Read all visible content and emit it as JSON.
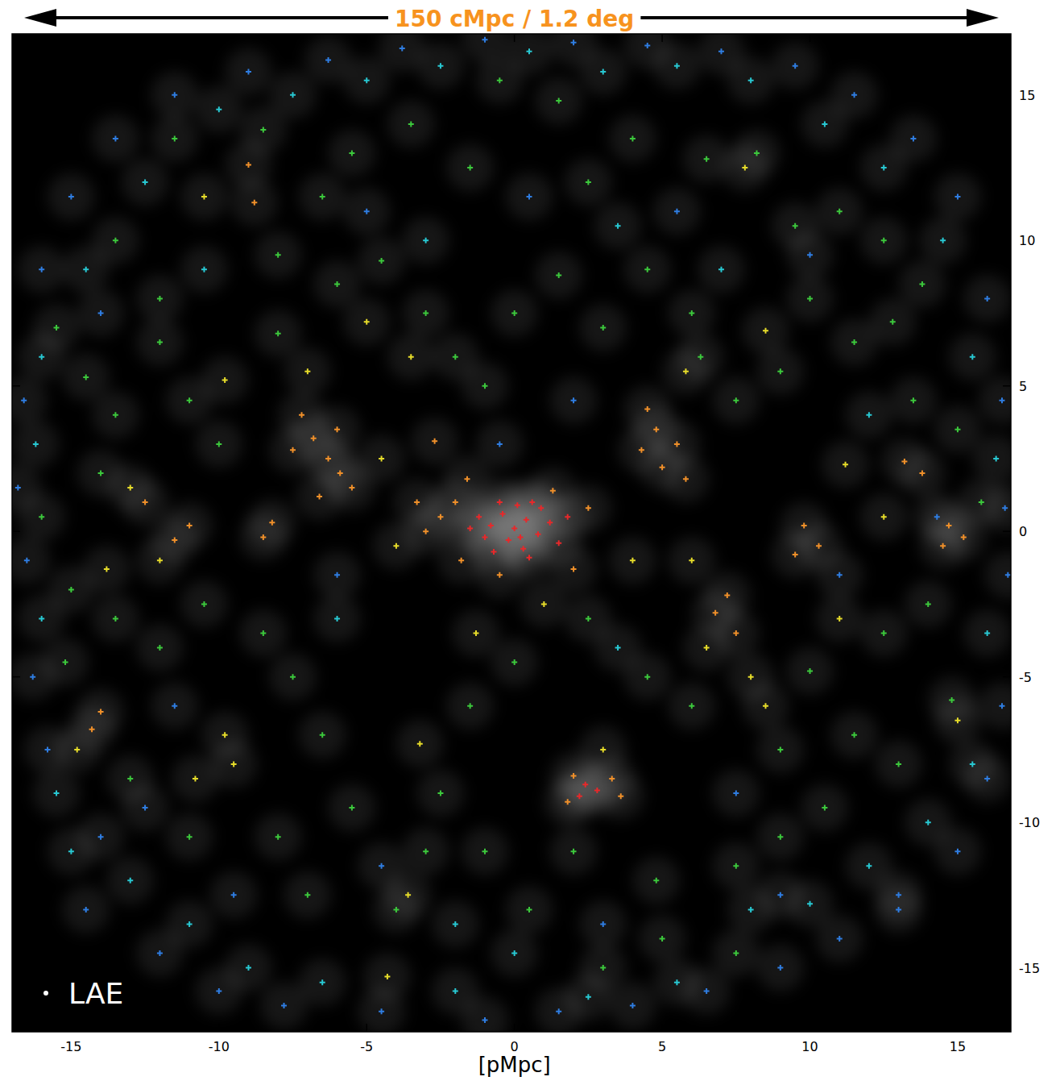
{
  "chart_data": {
    "type": "scatter",
    "title": "150 cMpc / 1.2 deg",
    "x_label": "[pMpc]",
    "xlim": [
      -17,
      16.8
    ],
    "ylim": [
      -17.2,
      17.1
    ],
    "xticks": [
      -15,
      -10,
      -5,
      0,
      5,
      10,
      15
    ],
    "yticks": [
      -15,
      -10,
      -5,
      0,
      5,
      10,
      15
    ],
    "legend": "bottom-left",
    "series": [
      {
        "name": "LAE",
        "color": "#ffffff",
        "marker": "plus",
        "x": [
          -1.2,
          -0.8,
          -0.4,
          0,
          0.4,
          0.8,
          1.2,
          -0.2,
          0.3,
          0.9,
          -1,
          0.6,
          -0.5,
          1.5,
          0.1,
          -0.7,
          0.5,
          1.8,
          -1.5,
          0.2,
          2.4,
          2.8,
          2.2,
          -2.5,
          -3,
          -2,
          -3.3,
          -1.8,
          2,
          2.5,
          -0.5,
          1.3,
          -1.6,
          -6.3,
          -6.8,
          -5.9,
          -7.2,
          -6,
          -5.5,
          -6.6,
          -7.5,
          4.8,
          5.5,
          5,
          4.5,
          5.8,
          4.3,
          9.8,
          10.3,
          9.5,
          13.2,
          13.8,
          14.7,
          15.2,
          14.5,
          -8.5,
          -8.2,
          -11,
          -11.5,
          -12.5,
          -9,
          -8.8,
          7.2,
          6.8,
          7.5,
          2,
          3.3,
          1.8,
          3.6,
          -14.3,
          -14,
          -2.7,
          -9.8,
          -7,
          -4.5,
          -3.5,
          -5,
          -10.5,
          8,
          8.5,
          6.5,
          11.2,
          12.5,
          -13,
          -12,
          -9.5,
          -9.8,
          -10.8,
          -14.8,
          -3.2,
          -3.6,
          -4.3,
          6,
          3,
          7.8,
          8.5,
          5.8,
          11,
          15,
          -1.3,
          1,
          -4,
          4,
          -13.8,
          -14.5,
          -13.5,
          -12,
          -11,
          -10,
          -8,
          -6,
          -4.5,
          -3,
          -2,
          -1,
          0,
          1.5,
          3,
          4.5,
          6,
          6.3,
          7.5,
          9,
          10,
          11.5,
          12.8,
          13.5,
          15,
          15.8,
          14,
          12.5,
          10,
          9,
          11.5,
          13,
          14.8,
          6,
          4.5,
          2.5,
          0,
          -1.5,
          -2.5,
          -1,
          0.5,
          -3,
          -4,
          -5.5,
          -6.5,
          -7.5,
          -8.5,
          -10.5,
          -12,
          -13.5,
          -15.2,
          -15,
          -16,
          -14,
          -12,
          -8,
          -8.5,
          -6.5,
          -5.5,
          -3.5,
          -1.5,
          -0.5,
          1.5,
          2.5,
          4,
          6.5,
          8.2,
          9.5,
          11,
          12.5,
          13.8,
          -11.5,
          -13.5,
          -15.5,
          7.5,
          9,
          10.5,
          4.8,
          2,
          -8,
          -7,
          -11,
          -13,
          5,
          7.5,
          3,
          -16.2,
          -16,
          -15.5,
          -13,
          -11,
          -9,
          -6.5,
          -2,
          0,
          2.5,
          5.5,
          8,
          10,
          12,
          14,
          15.5,
          16,
          16.3,
          15.5,
          14.5,
          12.5,
          10.5,
          8,
          5.5,
          3,
          0.5,
          -2.5,
          -5,
          -7.5,
          -10,
          -12.5,
          -14.5,
          -16,
          -10.5,
          -3,
          3.5,
          12,
          -6,
          3.5,
          -2,
          7,
          -15,
          -16.8,
          -16.5,
          -16.3,
          -15.8,
          -14.5,
          -12,
          -10,
          -7.8,
          -4.5,
          -1,
          1.5,
          4,
          6.5,
          9,
          11,
          13,
          15,
          16,
          16.5,
          16.7,
          16.6,
          16.5,
          16,
          15,
          13.5,
          11.5,
          9.5,
          7,
          4.5,
          2,
          -1,
          -3.8,
          -6.3,
          -9,
          -11.5,
          -13.5,
          -15,
          -16,
          -16.6,
          -14,
          -5,
          0.5,
          5.5,
          10,
          14.3,
          11,
          9,
          3,
          -4.5,
          -9.5,
          -14,
          -11.5,
          -6,
          2,
          -0.5,
          7.5,
          13,
          -12.5
        ],
        "values": [
          0.5,
          0.2,
          0.6,
          0.1,
          0.4,
          -0.1,
          0.3,
          -0.3,
          -0.6,
          0.8,
          -0.2,
          1.0,
          1.0,
          -0.4,
          0.9,
          -0.7,
          -0.9,
          0.5,
          0.1,
          -0.2,
          -8.7,
          -8.9,
          -9.1,
          0.5,
          0,
          1,
          1,
          -1,
          -1.3,
          0.8,
          -1.5,
          1.4,
          1.8,
          2.5,
          3.2,
          2,
          4,
          3.5,
          1.5,
          1.2,
          2.8,
          3.5,
          3,
          2.2,
          4.2,
          1.8,
          2.8,
          0.2,
          -0.5,
          -0.8,
          2.4,
          2,
          0.2,
          -0.2,
          -0.5,
          -0.2,
          0.3,
          0.2,
          -0.3,
          1,
          12.6,
          11.3,
          -2.2,
          -2.8,
          -3.5,
          -8.4,
          -8.5,
          -9.3,
          -9.1,
          -6.8,
          -6.2,
          3.1,
          5.2,
          5.5,
          2.5,
          6,
          7.2,
          11.5,
          -5,
          -6,
          -4,
          2.3,
          0.5,
          1.5,
          -1,
          -8,
          -7,
          -8.5,
          -7.5,
          -7.3,
          -12.5,
          -15.3,
          -1,
          -7.5,
          12.5,
          6.9,
          5.5,
          -3,
          -6.5,
          -3.5,
          -2.5,
          -0.5,
          -1,
          -1.3,
          5.3,
          4,
          6.5,
          4.5,
          3,
          6.8,
          8.5,
          9.3,
          7.5,
          6,
          5,
          7.5,
          8.8,
          7,
          9,
          7.5,
          6,
          4.5,
          5.5,
          8,
          6.5,
          7.2,
          4.5,
          3.5,
          1,
          -2.5,
          -3.5,
          -4.8,
          -7.5,
          -7,
          -8,
          -5.8,
          -6,
          -5,
          -3,
          -4.5,
          -6,
          -9,
          -11,
          -13,
          -11,
          -13,
          -9.5,
          -7,
          -5,
          -3.5,
          -2.5,
          -4,
          -3,
          -4.5,
          -2,
          0.5,
          2,
          8,
          9.5,
          13.8,
          11.5,
          13,
          14,
          12.5,
          15.5,
          14.8,
          12,
          13.5,
          12.8,
          13,
          10.5,
          11,
          10,
          8.5,
          13.5,
          10,
          7,
          -11.5,
          -10.5,
          -9.5,
          -12,
          -11,
          -10.5,
          -12.5,
          -10.5,
          -8.5,
          -14,
          -14.5,
          -15,
          3,
          -3,
          -9,
          -12,
          -13.5,
          -15,
          -15.5,
          -15.8,
          -14.5,
          -16,
          -15.5,
          -13,
          -12.8,
          -11.5,
          -10,
          -8,
          -3.5,
          2.5,
          6,
          10,
          12.5,
          14,
          15.5,
          16,
          15.8,
          16.5,
          16,
          15.5,
          15,
          14.5,
          12,
          9,
          6,
          9,
          10,
          10.5,
          4,
          -3,
          -4,
          -13.5,
          9,
          -11,
          1.5,
          -1,
          -5,
          -7.5,
          -13,
          -14.5,
          -15.8,
          -16.3,
          -16.5,
          -16.8,
          -16.5,
          -16.3,
          -15.8,
          -15,
          -14,
          -12.5,
          -11,
          -8.5,
          -6,
          -1.5,
          0.8,
          4.5,
          8,
          11.5,
          13.5,
          15,
          16,
          16.5,
          16.7,
          16.8,
          16.9,
          16.6,
          16.2,
          15.8,
          15,
          13.5,
          11.5,
          9,
          4.5,
          7.5,
          11,
          11.5,
          11,
          9.5,
          0.5,
          -1.5,
          -12.5,
          -13.5,
          -11.5,
          -12.5,
          -10.5,
          -6,
          -1.5,
          4.5,
          3,
          -9,
          -13,
          -9.5
        ],
        "colors": [
          "#e8282a",
          "#e8282a",
          "#e8282a",
          "#e8282a",
          "#e8282a",
          "#e8282a",
          "#e8282a",
          "#e8282a",
          "#e8282a",
          "#e8282a",
          "#e8282a",
          "#e8282a",
          "#e8282a",
          "#e8282a",
          "#e8282a",
          "#e8282a",
          "#e8282a",
          "#e8282a",
          "#e8282a",
          "#e8282a",
          "#e8282a",
          "#e8282a",
          "#e8282a",
          "#f0902a",
          "#f0902a",
          "#f0902a",
          "#f0902a",
          "#f0902a",
          "#f0902a",
          "#f0902a",
          "#f0902a",
          "#f0902a",
          "#f0902a",
          "#f0902a",
          "#f0902a",
          "#f0902a",
          "#f0902a",
          "#f0902a",
          "#f0902a",
          "#f0902a",
          "#f0902a",
          "#f0902a",
          "#f0902a",
          "#f0902a",
          "#f0902a",
          "#f0902a",
          "#f0902a",
          "#f0902a",
          "#f0902a",
          "#f0902a",
          "#f0902a",
          "#f0902a",
          "#f0902a",
          "#f0902a",
          "#f0902a",
          "#f0902a",
          "#f0902a",
          "#f0902a",
          "#f0902a",
          "#f0902a",
          "#f0902a",
          "#f0902a",
          "#f0902a",
          "#f0902a",
          "#f0902a",
          "#f0902a",
          "#f0902a",
          "#f0902a",
          "#f0902a",
          "#f0902a",
          "#f0902a",
          "#f0902a",
          "#e6dc2a",
          "#e6dc2a",
          "#e6dc2a",
          "#e6dc2a",
          "#e6dc2a",
          "#e6dc2a",
          "#e6dc2a",
          "#e6dc2a",
          "#e6dc2a",
          "#e6dc2a",
          "#e6dc2a",
          "#e6dc2a",
          "#e6dc2a",
          "#e6dc2a",
          "#e6dc2a",
          "#e6dc2a",
          "#e6dc2a",
          "#e6dc2a",
          "#e6dc2a",
          "#e6dc2a",
          "#e6dc2a",
          "#e6dc2a",
          "#e6dc2a",
          "#e6dc2a",
          "#e6dc2a",
          "#e6dc2a",
          "#e6dc2a",
          "#e6dc2a",
          "#e6dc2a",
          "#e6dc2a",
          "#e6dc2a",
          "#e6dc2a",
          "#3cc83c",
          "#3cc83c",
          "#3cc83c",
          "#3cc83c",
          "#3cc83c",
          "#3cc83c",
          "#3cc83c",
          "#3cc83c",
          "#3cc83c",
          "#3cc83c",
          "#3cc83c",
          "#3cc83c",
          "#3cc83c",
          "#3cc83c",
          "#3cc83c",
          "#3cc83c",
          "#3cc83c",
          "#3cc83c",
          "#3cc83c",
          "#3cc83c",
          "#3cc83c",
          "#3cc83c",
          "#3cc83c",
          "#3cc83c",
          "#3cc83c",
          "#3cc83c",
          "#3cc83c",
          "#3cc83c",
          "#3cc83c",
          "#3cc83c",
          "#3cc83c",
          "#3cc83c",
          "#3cc83c",
          "#3cc83c",
          "#3cc83c",
          "#3cc83c",
          "#3cc83c",
          "#3cc83c",
          "#3cc83c",
          "#3cc83c",
          "#3cc83c",
          "#3cc83c",
          "#3cc83c",
          "#3cc83c",
          "#3cc83c",
          "#3cc83c",
          "#3cc83c",
          "#3cc83c",
          "#3cc83c",
          "#3cc83c",
          "#3cc83c",
          "#3cc83c",
          "#3cc83c",
          "#3cc83c",
          "#3cc83c",
          "#3cc83c",
          "#3cc83c",
          "#3cc83c",
          "#3cc83c",
          "#3cc83c",
          "#3cc83c",
          "#3cc83c",
          "#3cc83c",
          "#3cc83c",
          "#3cc83c",
          "#3cc83c",
          "#3cc83c",
          "#3cc83c",
          "#3cc83c",
          "#3cc83c",
          "#3cc83c",
          "#3cc83c",
          "#3cc83c",
          "#3cc83c",
          "#3cc83c",
          "#3cc83c",
          "#3cc83c",
          "#3cc83c",
          "#3cc83c",
          "#3cc83c",
          "#3cc83c",
          "#3cc83c",
          "#3cc83c",
          "#3cc83c",
          "#3cc83c",
          "#28c8d2",
          "#28c8d2",
          "#28c8d2",
          "#28c8d2",
          "#28c8d2",
          "#28c8d2",
          "#28c8d2",
          "#28c8d2",
          "#28c8d2",
          "#28c8d2",
          "#28c8d2",
          "#28c8d2",
          "#28c8d2",
          "#28c8d2",
          "#28c8d2",
          "#28c8d2",
          "#28c8d2",
          "#28c8d2",
          "#28c8d2",
          "#28c8d2",
          "#28c8d2",
          "#28c8d2",
          "#28c8d2",
          "#28c8d2",
          "#28c8d2",
          "#28c8d2",
          "#28c8d2",
          "#28c8d2",
          "#28c8d2",
          "#28c8d2",
          "#28c8d2",
          "#28c8d2",
          "#28c8d2",
          "#28c8d2",
          "#28c8d2",
          "#28c8d2",
          "#28c8d2",
          "#28c8d2",
          "#28c8d2",
          "#28c8d2",
          "#28c8d2",
          "#28c8d2",
          "#2f7de1",
          "#2f7de1",
          "#2f7de1",
          "#2f7de1",
          "#2f7de1",
          "#2f7de1",
          "#2f7de1",
          "#2f7de1",
          "#2f7de1",
          "#2f7de1",
          "#2f7de1",
          "#2f7de1",
          "#2f7de1",
          "#2f7de1",
          "#2f7de1",
          "#2f7de1",
          "#2f7de1",
          "#2f7de1",
          "#2f7de1",
          "#2f7de1",
          "#2f7de1",
          "#2f7de1",
          "#2f7de1",
          "#2f7de1",
          "#2f7de1",
          "#2f7de1",
          "#2f7de1",
          "#2f7de1",
          "#2f7de1",
          "#2f7de1",
          "#2f7de1",
          "#2f7de1",
          "#2f7de1",
          "#2f7de1",
          "#2f7de1",
          "#2f7de1",
          "#2f7de1",
          "#2f7de1",
          "#2f7de1",
          "#2f7de1",
          "#2f7de1",
          "#2f7de1",
          "#2f7de1",
          "#2f7de1",
          "#2f7de1",
          "#2f7de1",
          "#2f7de1",
          "#2f7de1",
          "#2f7de1",
          "#2f7de1",
          "#2f7de1",
          "#2f7de1",
          "#2f7de1",
          "#2f7de1",
          "#2f7de1",
          "#2f7de1",
          "#2f7de1",
          "#2f7de1"
        ]
      }
    ]
  }
}
